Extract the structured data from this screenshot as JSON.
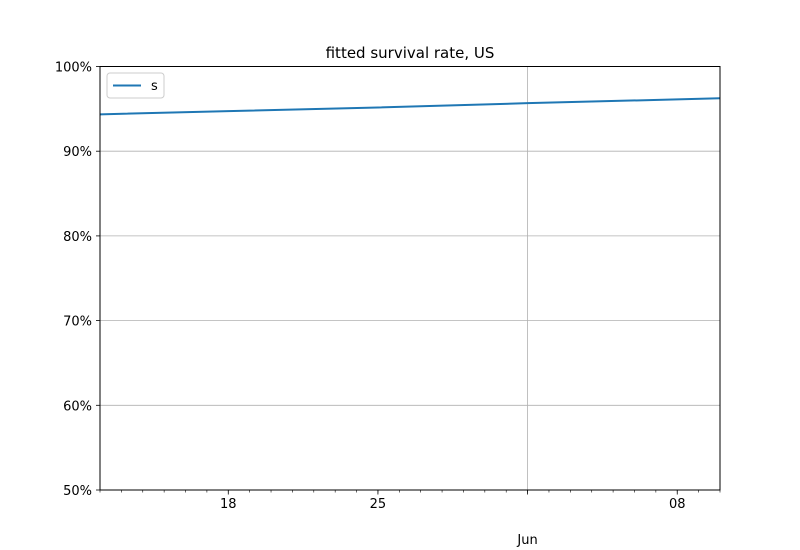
{
  "chart_data": {
    "type": "line",
    "title": "fitted survival rate, US",
    "xlabel": "",
    "ylabel": "",
    "xlim": [
      "2020-05-12",
      "2020-06-10"
    ],
    "ylim": [
      0.5,
      1.0
    ],
    "grid": true,
    "legend_position": "top-left",
    "y_ticks": [
      {
        "value": 0.5,
        "label": "50%"
      },
      {
        "value": 0.6,
        "label": "60%"
      },
      {
        "value": 0.7,
        "label": "70%"
      },
      {
        "value": 0.8,
        "label": "80%"
      },
      {
        "value": 0.9,
        "label": "90%"
      },
      {
        "value": 1.0,
        "label": "100%"
      }
    ],
    "x_major_ticks": [
      {
        "date": "2020-05-18",
        "label": "18"
      },
      {
        "date": "2020-05-25",
        "label": "25"
      },
      {
        "date": "2020-06-01",
        "label": "Jun\n2020"
      },
      {
        "date": "2020-06-08",
        "label": "08"
      }
    ],
    "series": [
      {
        "name": "s",
        "color": "#1f77b4",
        "x": [
          "2020-05-12",
          "2020-05-18",
          "2020-05-25",
          "2020-06-01",
          "2020-06-08",
          "2020-06-10"
        ],
        "y": [
          0.9435,
          0.9473,
          0.9516,
          0.9567,
          0.9612,
          0.9625
        ]
      }
    ]
  }
}
